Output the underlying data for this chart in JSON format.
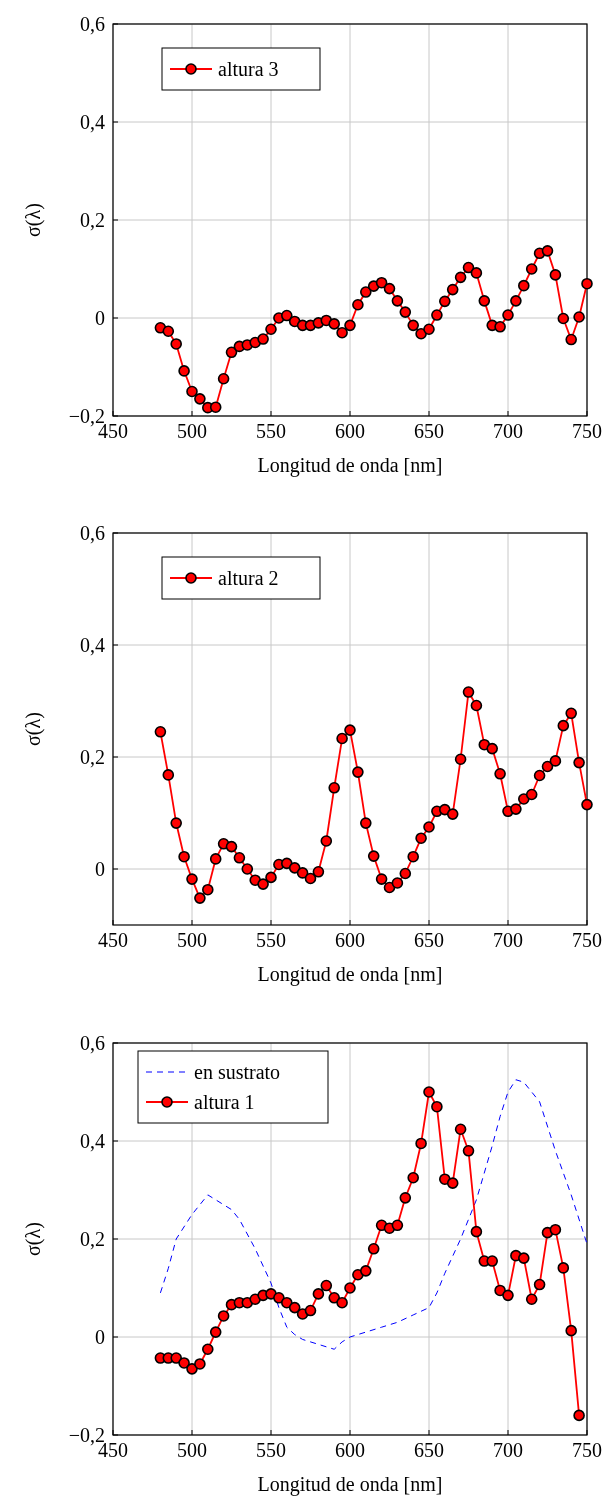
{
  "chart_data": [
    {
      "type": "line",
      "xlabel": "Longitud de onda [nm]",
      "ylabel": "σ(λ)",
      "xlim": [
        450,
        750
      ],
      "ylim": [
        -0.2,
        0.6
      ],
      "xticks": [
        450,
        500,
        550,
        600,
        650,
        700,
        750
      ],
      "yticks": [
        {
          "value": -0.2,
          "label": "−0,2"
        },
        {
          "value": 0,
          "label": "0"
        },
        {
          "value": 0.2,
          "label": "0,2"
        },
        {
          "value": 0.4,
          "label": "0,4"
        },
        {
          "value": 0.6,
          "label": "0,6"
        }
      ],
      "grid": true,
      "legend": "top left",
      "series": [
        {
          "name": "altura 3",
          "color": "#ff0000",
          "marker": "circle",
          "line_style": "solid",
          "x": [
            480,
            485,
            490,
            495,
            500,
            505,
            510,
            515,
            520,
            525,
            530,
            535,
            540,
            545,
            550,
            555,
            560,
            565,
            570,
            575,
            580,
            585,
            590,
            595,
            600,
            605,
            610,
            615,
            620,
            625,
            630,
            635,
            640,
            645,
            650,
            655,
            660,
            665,
            670,
            675,
            680,
            685,
            690,
            695,
            700,
            705,
            710,
            715,
            720,
            725,
            730,
            735,
            740,
            745,
            750
          ],
          "values": [
            -0.02,
            -0.027,
            -0.053,
            -0.108,
            -0.15,
            -0.165,
            -0.183,
            -0.182,
            -0.124,
            -0.07,
            -0.058,
            -0.055,
            -0.05,
            -0.043,
            -0.023,
            0,
            0.005,
            -0.007,
            -0.015,
            -0.015,
            -0.01,
            -0.005,
            -0.012,
            -0.03,
            -0.015,
            0.027,
            0.053,
            0.065,
            0.072,
            0.06,
            0.035,
            0.012,
            -0.015,
            -0.032,
            -0.023,
            0.006,
            0.034,
            0.058,
            0.083,
            0.103,
            0.092,
            0.035,
            -0.015,
            -0.018,
            0.006,
            0.035,
            0.066,
            0.1,
            0.132,
            0.137,
            0.088,
            -0.001,
            -0.044,
            0.002,
            0.07
          ]
        }
      ]
    },
    {
      "type": "line",
      "xlabel": "Longitud de onda [nm]",
      "ylabel": "σ(λ)",
      "xlim": [
        450,
        750
      ],
      "ylim": [
        -0.1,
        0.6
      ],
      "xticks": [
        450,
        500,
        550,
        600,
        650,
        700,
        750
      ],
      "yticks": [
        {
          "value": 0,
          "label": "0"
        },
        {
          "value": 0.2,
          "label": "0,2"
        },
        {
          "value": 0.4,
          "label": "0,4"
        },
        {
          "value": 0.6,
          "label": "0,6"
        }
      ],
      "grid": true,
      "legend": "top left",
      "series": [
        {
          "name": "altura 2",
          "color": "#ff0000",
          "marker": "circle",
          "line_style": "solid",
          "x": [
            480,
            485,
            490,
            495,
            500,
            505,
            510,
            515,
            520,
            525,
            530,
            535,
            540,
            545,
            550,
            555,
            560,
            565,
            570,
            575,
            580,
            585,
            590,
            595,
            600,
            605,
            610,
            615,
            620,
            625,
            630,
            635,
            640,
            645,
            650,
            655,
            660,
            665,
            670,
            675,
            680,
            685,
            690,
            695,
            700,
            705,
            710,
            715,
            720,
            725,
            730,
            735,
            740,
            745,
            750
          ],
          "values": [
            0.245,
            0.168,
            0.082,
            0.022,
            -0.018,
            -0.052,
            -0.037,
            0.018,
            0.045,
            0.04,
            0.02,
            0,
            -0.02,
            -0.027,
            -0.015,
            0.008,
            0.01,
            0.002,
            -0.007,
            -0.017,
            -0.005,
            0.05,
            0.145,
            0.233,
            0.248,
            0.173,
            0.082,
            0.023,
            -0.018,
            -0.033,
            -0.025,
            -0.008,
            0.022,
            0.055,
            0.075,
            0.103,
            0.106,
            0.098,
            0.196,
            0.316,
            0.292,
            0.222,
            0.215,
            0.17,
            0.103,
            0.107,
            0.125,
            0.133,
            0.167,
            0.183,
            0.193,
            0.256,
            0.278,
            0.19,
            0.115
          ]
        }
      ]
    },
    {
      "type": "line",
      "xlabel": "Longitud de onda [nm]",
      "ylabel": "σ(λ)",
      "xlim": [
        450,
        750
      ],
      "ylim": [
        -0.2,
        0.6
      ],
      "xticks": [
        450,
        500,
        550,
        600,
        650,
        700,
        750
      ],
      "yticks": [
        {
          "value": -0.2,
          "label": "−0,2"
        },
        {
          "value": 0,
          "label": "0"
        },
        {
          "value": 0.2,
          "label": "0,2"
        },
        {
          "value": 0.4,
          "label": "0,4"
        },
        {
          "value": 0.6,
          "label": "0,6"
        }
      ],
      "grid": true,
      "legend": "top left",
      "series": [
        {
          "name": "en sustrato",
          "color": "#0000ff",
          "marker": "none",
          "line_style": "dashed",
          "x": [
            480,
            485,
            490,
            500,
            510,
            520,
            525,
            530,
            540,
            550,
            555,
            560,
            565,
            570,
            580,
            590,
            595,
            600,
            610,
            620,
            630,
            640,
            650,
            655,
            660,
            670,
            680,
            690,
            695,
            700,
            705,
            710,
            720,
            730,
            740,
            750
          ],
          "values": [
            0.09,
            0.14,
            0.2,
            0.25,
            0.29,
            0.27,
            0.26,
            0.24,
            0.18,
            0.11,
            0.06,
            0.02,
            0.005,
            -0.005,
            -0.015,
            -0.025,
            -0.01,
            0,
            0.01,
            0.02,
            0.03,
            0.045,
            0.06,
            0.09,
            0.13,
            0.2,
            0.28,
            0.39,
            0.45,
            0.5,
            0.525,
            0.52,
            0.48,
            0.38,
            0.29,
            0.19
          ]
        },
        {
          "name": "altura 1",
          "color": "#ff0000",
          "marker": "circle",
          "line_style": "solid",
          "x": [
            480,
            485,
            490,
            495,
            500,
            505,
            510,
            515,
            520,
            525,
            530,
            535,
            540,
            545,
            550,
            555,
            560,
            565,
            570,
            575,
            580,
            585,
            590,
            595,
            600,
            605,
            610,
            615,
            620,
            625,
            630,
            635,
            640,
            645,
            650,
            655,
            660,
            665,
            670,
            675,
            680,
            685,
            690,
            695,
            700,
            705,
            710,
            715,
            720,
            725,
            730,
            735,
            740,
            745
          ],
          "values": [
            -0.043,
            -0.043,
            -0.043,
            -0.053,
            -0.065,
            -0.055,
            -0.025,
            0.01,
            0.043,
            0.066,
            0.07,
            0.07,
            0.077,
            0.085,
            0.088,
            0.08,
            0.07,
            0.06,
            0.047,
            0.054,
            0.088,
            0.105,
            0.08,
            0.07,
            0.1,
            0.127,
            0.135,
            0.18,
            0.228,
            0.222,
            0.228,
            0.284,
            0.325,
            0.395,
            0.5,
            0.47,
            0.322,
            0.314,
            0.424,
            0.38,
            0.215,
            0.155,
            0.155,
            0.095,
            0.085,
            0.166,
            0.161,
            0.077,
            0.107,
            0.213,
            0.219,
            0.141,
            0.013,
            -0.16
          ]
        }
      ]
    }
  ]
}
